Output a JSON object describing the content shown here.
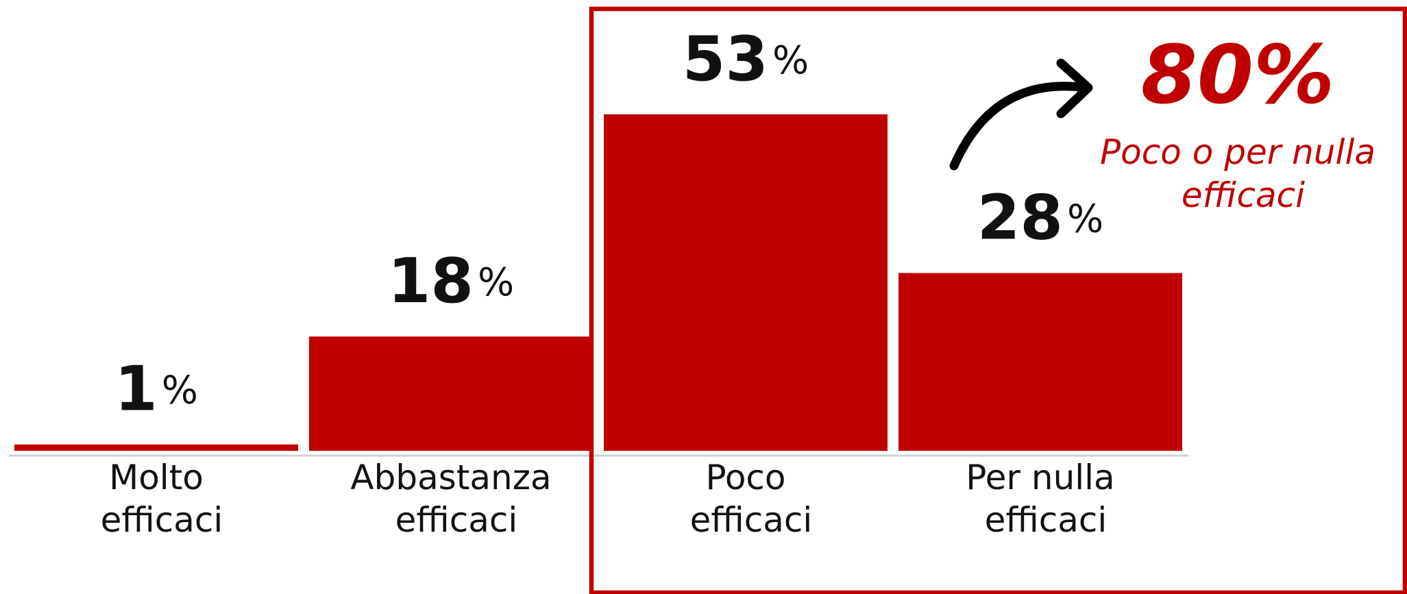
{
  "chart_data": {
    "type": "bar",
    "categories": [
      "Molto efficaci",
      "Abbastanza efficaci",
      "Poco efficaci",
      "Per nulla efficaci"
    ],
    "values": [
      1,
      18,
      53,
      28
    ],
    "value_labels": [
      "1%",
      "18%",
      "53%",
      "28%"
    ],
    "color": "#c00000",
    "ylim": [
      0,
      71
    ],
    "annotation": {
      "label": "80%",
      "text": "Poco o per nulla efficaci"
    }
  }
}
